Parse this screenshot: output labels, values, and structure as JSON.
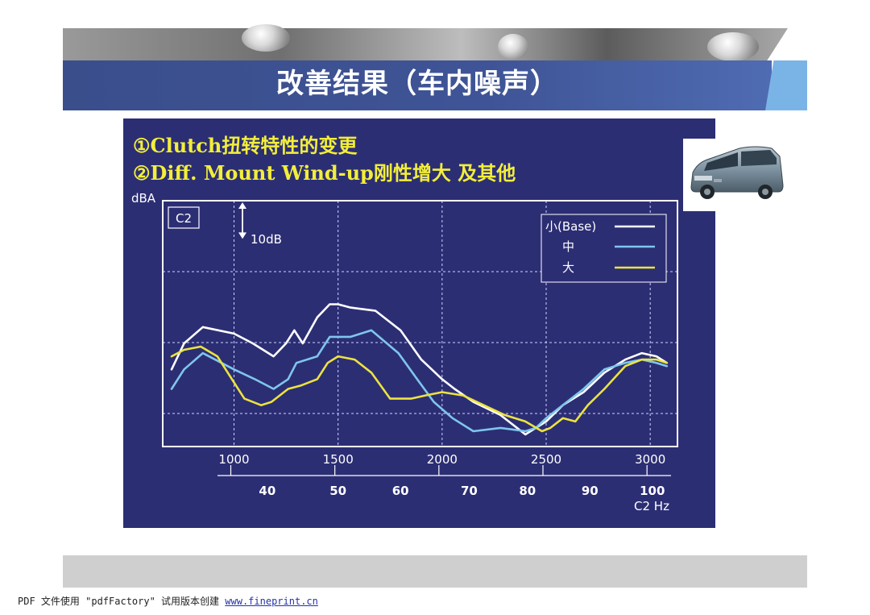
{
  "header": {
    "title": "改善结果（车内噪声）"
  },
  "chart_data": {
    "type": "line",
    "headlines": [
      "①Clutch扭转特性的变更",
      "②Diff. Mount Wind-up刚性增大 及其他"
    ],
    "ylabel": "dBA",
    "panel_label": "C2",
    "scale_annotation": "10dB",
    "scale_db": 10,
    "xlabel": "C2 Hz",
    "x_range": [
      700,
      3100
    ],
    "xticks": [
      1000,
      1500,
      2000,
      2500,
      3000
    ],
    "xtick_labels": [
      "1000",
      "1500",
      "2000",
      "2500",
      "3000"
    ],
    "secondary_axis_labels": [
      {
        "value": 1160,
        "label": "40"
      },
      {
        "value": 1500,
        "label": "50"
      },
      {
        "value": 1800,
        "label": "60"
      },
      {
        "value": 2130,
        "label": "70"
      },
      {
        "value": 2410,
        "label": "80"
      },
      {
        "value": 2710,
        "label": "90"
      },
      {
        "value": 3010,
        "label": "100"
      }
    ],
    "y_range": [
      0,
      54
    ],
    "grid": true,
    "legend_position": "top-right",
    "series": [
      {
        "name": "小(Base)",
        "color": "#ffffff",
        "points": [
          [
            700,
            20
          ],
          [
            760,
            28
          ],
          [
            850,
            33
          ],
          [
            1000,
            31
          ],
          [
            1090,
            28
          ],
          [
            1190,
            24
          ],
          [
            1250,
            28
          ],
          [
            1290,
            32
          ],
          [
            1330,
            28
          ],
          [
            1400,
            36
          ],
          [
            1460,
            40
          ],
          [
            1500,
            40
          ],
          [
            1560,
            39
          ],
          [
            1680,
            38
          ],
          [
            1800,
            32
          ],
          [
            1900,
            23
          ],
          [
            2000,
            17
          ],
          [
            2060,
            14
          ],
          [
            2150,
            10
          ],
          [
            2280,
            6
          ],
          [
            2400,
            0
          ],
          [
            2450,
            2
          ],
          [
            2500,
            4
          ],
          [
            2580,
            9
          ],
          [
            2680,
            13
          ],
          [
            2780,
            19
          ],
          [
            2880,
            23
          ],
          [
            2960,
            25
          ],
          [
            3030,
            24
          ],
          [
            3080,
            22
          ]
        ]
      },
      {
        "name": "中",
        "color": "#7fc6ec",
        "points": [
          [
            700,
            14
          ],
          [
            760,
            20
          ],
          [
            850,
            25
          ],
          [
            1000,
            20
          ],
          [
            1100,
            17
          ],
          [
            1190,
            14
          ],
          [
            1260,
            17
          ],
          [
            1300,
            22
          ],
          [
            1400,
            24
          ],
          [
            1460,
            30
          ],
          [
            1500,
            30
          ],
          [
            1560,
            30
          ],
          [
            1660,
            32
          ],
          [
            1790,
            25
          ],
          [
            1880,
            17
          ],
          [
            1960,
            10
          ],
          [
            2050,
            5
          ],
          [
            2150,
            1
          ],
          [
            2280,
            2
          ],
          [
            2400,
            1
          ],
          [
            2450,
            2
          ],
          [
            2500,
            5
          ],
          [
            2560,
            8
          ],
          [
            2680,
            14
          ],
          [
            2780,
            20
          ],
          [
            2880,
            22
          ],
          [
            2960,
            23
          ],
          [
            3030,
            22
          ],
          [
            3080,
            21
          ]
        ]
      },
      {
        "name": "大",
        "color": "#ece33f",
        "points": [
          [
            700,
            24
          ],
          [
            760,
            26
          ],
          [
            840,
            27
          ],
          [
            920,
            24
          ],
          [
            990,
            17
          ],
          [
            1050,
            11
          ],
          [
            1130,
            9
          ],
          [
            1180,
            10
          ],
          [
            1260,
            14
          ],
          [
            1320,
            15
          ],
          [
            1400,
            17
          ],
          [
            1450,
            22
          ],
          [
            1500,
            24
          ],
          [
            1580,
            23
          ],
          [
            1660,
            19
          ],
          [
            1750,
            11
          ],
          [
            1850,
            11
          ],
          [
            1920,
            12
          ],
          [
            2000,
            13
          ],
          [
            2100,
            12
          ],
          [
            2200,
            9
          ],
          [
            2300,
            6
          ],
          [
            2400,
            4
          ],
          [
            2480,
            1
          ],
          [
            2520,
            2
          ],
          [
            2580,
            5
          ],
          [
            2640,
            4
          ],
          [
            2700,
            9
          ],
          [
            2780,
            14
          ],
          [
            2880,
            21
          ],
          [
            2960,
            23
          ],
          [
            3030,
            23
          ],
          [
            3080,
            22
          ]
        ]
      }
    ]
  },
  "footer": {
    "note": "PDF 文件使用 \"pdfFactory\" 试用版本创建",
    "link": "www.fineprint.cn"
  }
}
